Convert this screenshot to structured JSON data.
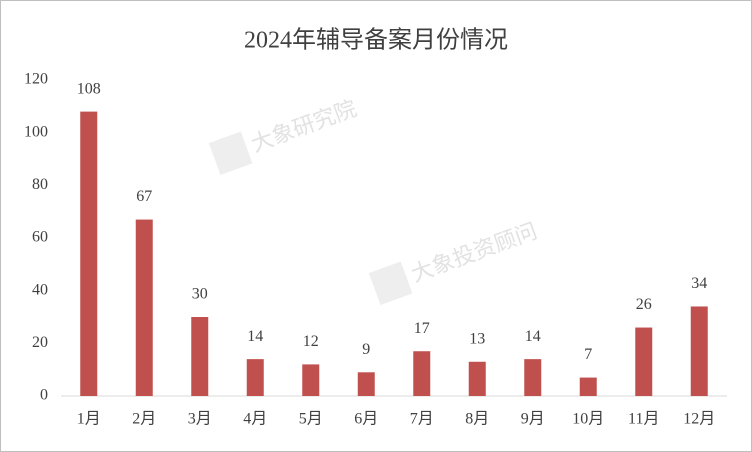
{
  "chart_data": {
    "type": "bar",
    "title": "2024年辅导备案月份情况",
    "categories": [
      "1月",
      "2月",
      "3月",
      "4月",
      "5月",
      "6月",
      "7月",
      "8月",
      "9月",
      "10月",
      "11月",
      "12月"
    ],
    "values": [
      108,
      67,
      30,
      14,
      12,
      9,
      17,
      13,
      14,
      7,
      26,
      34
    ],
    "color": "#c0504d",
    "ylim": [
      0,
      120
    ],
    "yticks": [
      0,
      20,
      40,
      60,
      80,
      100,
      120
    ],
    "grid": false,
    "watermarks": [
      "大象研究院",
      "大象投资顾问"
    ]
  }
}
